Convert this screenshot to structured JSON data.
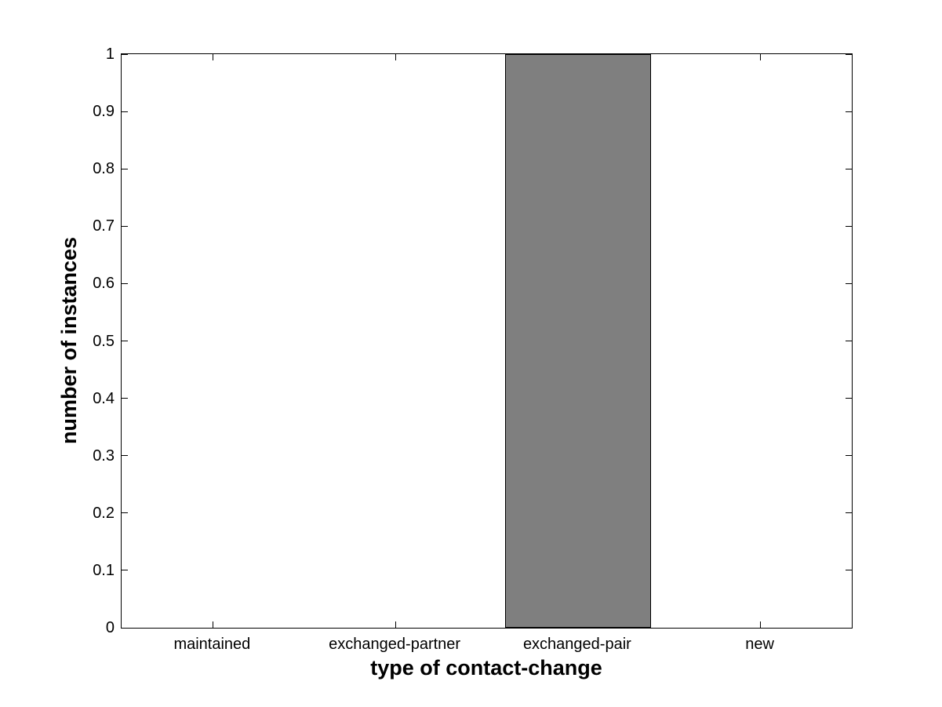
{
  "chart_data": {
    "type": "bar",
    "title": "",
    "xlabel": "type of contact-change",
    "ylabel": "number of instances",
    "categories": [
      "maintained",
      "exchanged-partner",
      "exchanged-pair",
      "new"
    ],
    "values": [
      0,
      0,
      1,
      0
    ],
    "ylim": [
      0,
      1
    ],
    "ytick_step": 0.1,
    "ytick_labels": [
      "0",
      "0.1",
      "0.2",
      "0.3",
      "0.4",
      "0.5",
      "0.6",
      "0.7",
      "0.8",
      "0.9",
      "1"
    ],
    "bar_width_fraction": 0.8,
    "grid": false,
    "legend_position": "none",
    "colors": {
      "bar_fill": "#7f7f7f",
      "bar_edge": "#000000",
      "axis": "#000000",
      "text": "#000000",
      "background": "#ffffff"
    }
  }
}
